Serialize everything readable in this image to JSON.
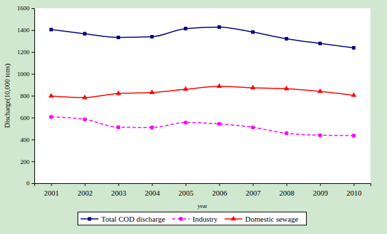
{
  "chart_data": {
    "type": "line",
    "x_label": "year",
    "y_label": "Discharge(10,000 tons)",
    "categories": [
      "2001",
      "2002",
      "2003",
      "2004",
      "2005",
      "2006",
      "2007",
      "2008",
      "2009",
      "2010"
    ],
    "series": [
      {
        "name": "Total COD discharge",
        "color": "#000080",
        "marker": "square",
        "line_style": "solid",
        "values": [
          1405,
          1367,
          1333,
          1339,
          1414,
          1428,
          1382,
          1321,
          1278,
          1238
        ]
      },
      {
        "name": "Industry",
        "color": "#ff00ff",
        "marker": "circle",
        "line_style": "dashed",
        "values": [
          607,
          584,
          512,
          510,
          555,
          542,
          511,
          457,
          439,
          435
        ]
      },
      {
        "name": "Domestic sewage",
        "color": "#ff0000",
        "marker": "triangle",
        "line_style": "solid",
        "values": [
          797,
          783,
          821,
          830,
          859,
          886,
          872,
          864,
          839,
          804
        ]
      }
    ],
    "ylim": [
      0,
      1600
    ],
    "yticks": [
      0,
      200,
      400,
      600,
      800,
      1000,
      1200,
      1400,
      1600
    ],
    "grid": false,
    "legend": "bottom"
  }
}
